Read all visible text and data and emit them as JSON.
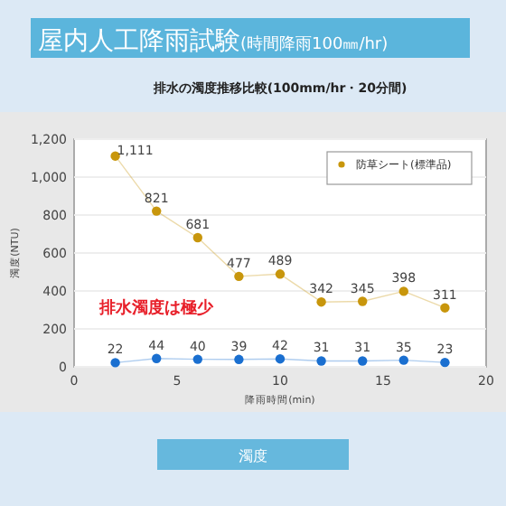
{
  "chart_data": {
    "type": "line",
    "title": "屋内人工降雨試験(時間降雨100㎜/hr)",
    "subtitle": "排水の濁度推移比較(100mm/hr・20分間)",
    "xlabel": "降雨時間(min)",
    "ylabel": "濁度(NTU)",
    "annotations": [
      "排水濁度は極少",
      "濁度"
    ],
    "x": [
      2,
      4,
      6,
      8,
      10,
      12,
      14,
      16,
      18
    ],
    "series": [
      {
        "name": "防草シート(標準品)",
        "color": "#c8960c",
        "values": [
          1111,
          821,
          681,
          477,
          489,
          342,
          345,
          398,
          311
        ],
        "value_labels": [
          "1,111",
          "821",
          "681",
          "477",
          "489",
          "342",
          "345",
          "398",
          "311"
        ]
      },
      {
        "color": "#1a6fd0",
        "values": [
          22,
          44,
          40,
          39,
          42,
          31,
          31,
          35,
          23
        ],
        "value_labels": [
          "22",
          "44",
          "40",
          "39",
          "42",
          "31",
          "31",
          "35",
          "23"
        ]
      }
    ],
    "xlim": [
      0,
      20
    ],
    "xticks": [
      0,
      5,
      10,
      15,
      20
    ],
    "ylim": [
      0,
      1200
    ],
    "yticks": [
      0,
      200,
      400,
      600,
      800,
      {
        "value": 1000,
        "label": "1,000"
      },
      {
        "value": 1200,
        "label": "1,200"
      }
    ],
    "grid": "y",
    "legend": "top right",
    "marker": "circle"
  }
}
